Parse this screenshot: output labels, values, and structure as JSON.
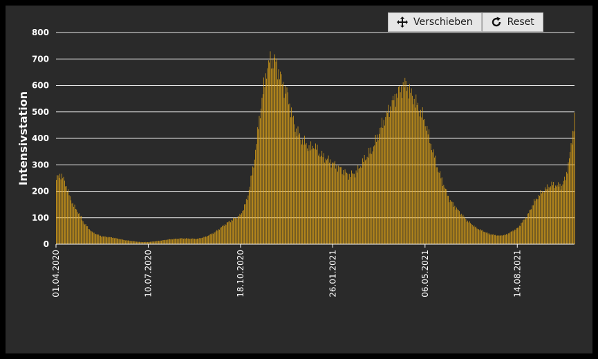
{
  "toolbar": {
    "pan_label": "Verschieben",
    "reset_label": "Reset",
    "pan_icon": "move-arrows-icon",
    "reset_icon": "rotate-cw-icon"
  },
  "colors": {
    "bar": "#e6a817",
    "background": "#2a2a2a",
    "grid": "#ffffff",
    "text": "#ffffff"
  },
  "chart_data": {
    "type": "bar",
    "title": "",
    "xlabel": "",
    "ylabel": "Intensivstation",
    "ylim": [
      0,
      800
    ],
    "yticks": [
      0,
      100,
      200,
      300,
      400,
      500,
      600,
      700,
      800
    ],
    "grid": "horizontal",
    "x_start": "01.04.2020",
    "x_end": "15.10.2021",
    "x_tick_labels": [
      "01.04.2020",
      "10.07.2020",
      "18.10.2020",
      "26.01.2021",
      "06.05.2021",
      "14.08.2021"
    ],
    "series": [
      {
        "values_by_date": [
          [
            "01.04.2020",
            245
          ],
          [
            "05.04.2020",
            265
          ],
          [
            "10.04.2020",
            240
          ],
          [
            "15.04.2020",
            185
          ],
          [
            "20.04.2020",
            145
          ],
          [
            "25.04.2020",
            120
          ],
          [
            "01.05.2020",
            80
          ],
          [
            "10.05.2020",
            45
          ],
          [
            "20.05.2020",
            30
          ],
          [
            "01.06.2020",
            25
          ],
          [
            "15.06.2020",
            15
          ],
          [
            "01.07.2020",
            8
          ],
          [
            "10.07.2020",
            8
          ],
          [
            "20.07.2020",
            12
          ],
          [
            "01.08.2020",
            18
          ],
          [
            "15.08.2020",
            22
          ],
          [
            "01.09.2020",
            20
          ],
          [
            "10.09.2020",
            28
          ],
          [
            "20.09.2020",
            45
          ],
          [
            "01.10.2020",
            75
          ],
          [
            "10.10.2020",
            95
          ],
          [
            "18.10.2020",
            110
          ],
          [
            "25.10.2020",
            170
          ],
          [
            "01.11.2020",
            300
          ],
          [
            "08.11.2020",
            500
          ],
          [
            "15.11.2020",
            660
          ],
          [
            "20.11.2020",
            700
          ],
          [
            "25.11.2020",
            690
          ],
          [
            "01.12.2020",
            620
          ],
          [
            "08.12.2020",
            560
          ],
          [
            "15.12.2020",
            450
          ],
          [
            "22.12.2020",
            400
          ],
          [
            "01.01.2021",
            360
          ],
          [
            "05.01.2021",
            375
          ],
          [
            "12.01.2021",
            340
          ],
          [
            "20.01.2021",
            320
          ],
          [
            "26.01.2021",
            305
          ],
          [
            "05.02.2021",
            280
          ],
          [
            "12.02.2021",
            260
          ],
          [
            "20.02.2021",
            270
          ],
          [
            "01.03.2021",
            320
          ],
          [
            "10.03.2021",
            360
          ],
          [
            "20.03.2021",
            450
          ],
          [
            "01.04.2021",
            540
          ],
          [
            "10.04.2021",
            590
          ],
          [
            "15.04.2021",
            605
          ],
          [
            "22.04.2021",
            560
          ],
          [
            "01.05.2021",
            500
          ],
          [
            "06.05.2021",
            460
          ],
          [
            "12.05.2021",
            380
          ],
          [
            "20.05.2021",
            280
          ],
          [
            "01.06.2021",
            170
          ],
          [
            "10.06.2021",
            130
          ],
          [
            "20.06.2021",
            90
          ],
          [
            "01.07.2021",
            60
          ],
          [
            "15.07.2021",
            38
          ],
          [
            "25.07.2021",
            32
          ],
          [
            "01.08.2021",
            35
          ],
          [
            "14.08.2021",
            60
          ],
          [
            "25.08.2021",
            110
          ],
          [
            "01.09.2021",
            160
          ],
          [
            "10.09.2021",
            200
          ],
          [
            "20.09.2021",
            225
          ],
          [
            "01.10.2021",
            220
          ],
          [
            "05.10.2021",
            250
          ],
          [
            "10.10.2021",
            340
          ],
          [
            "15.10.2021",
            480
          ]
        ]
      }
    ]
  }
}
